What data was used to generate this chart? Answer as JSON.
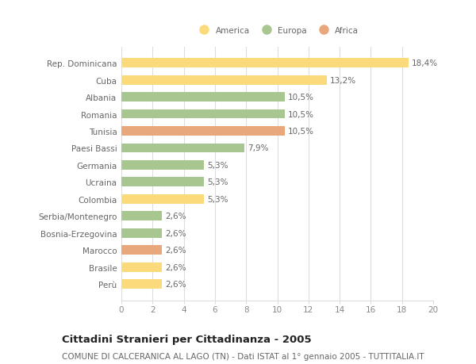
{
  "categories": [
    "Rep. Dominicana",
    "Cuba",
    "Albania",
    "Romania",
    "Tunisia",
    "Paesi Bassi",
    "Germania",
    "Ucraina",
    "Colombia",
    "Serbia/Montenegro",
    "Bosnia-Erzegovina",
    "Marocco",
    "Brasile",
    "Perù"
  ],
  "values": [
    18.4,
    13.2,
    10.5,
    10.5,
    10.5,
    7.9,
    5.3,
    5.3,
    5.3,
    2.6,
    2.6,
    2.6,
    2.6,
    2.6
  ],
  "labels": [
    "18,4%",
    "13,2%",
    "10,5%",
    "10,5%",
    "10,5%",
    "7,9%",
    "5,3%",
    "5,3%",
    "5,3%",
    "2,6%",
    "2,6%",
    "2,6%",
    "2,6%",
    "2,6%"
  ],
  "continent": [
    "America",
    "America",
    "Europa",
    "Europa",
    "Africa",
    "Europa",
    "Europa",
    "Europa",
    "America",
    "Europa",
    "Europa",
    "Africa",
    "America",
    "America"
  ],
  "colors": {
    "America": "#FADA7A",
    "Europa": "#A8C68F",
    "Africa": "#E8A87C"
  },
  "xlim": [
    0,
    20
  ],
  "xticks": [
    0,
    2,
    4,
    6,
    8,
    10,
    12,
    14,
    16,
    18,
    20
  ],
  "title": "Cittadini Stranieri per Cittadinanza - 2005",
  "subtitle": "COMUNE DI CALCERANICA AL LAGO (TN) - Dati ISTAT al 1° gennaio 2005 - TUTTITALIA.IT",
  "bg_color": "#ffffff",
  "grid_color": "#dddddd",
  "bar_height": 0.55,
  "label_fontsize": 7.5,
  "ytick_fontsize": 7.5,
  "xtick_fontsize": 7.5,
  "title_fontsize": 9.5,
  "subtitle_fontsize": 7.5,
  "value_label_color": "#666666",
  "ytick_color": "#666666"
}
